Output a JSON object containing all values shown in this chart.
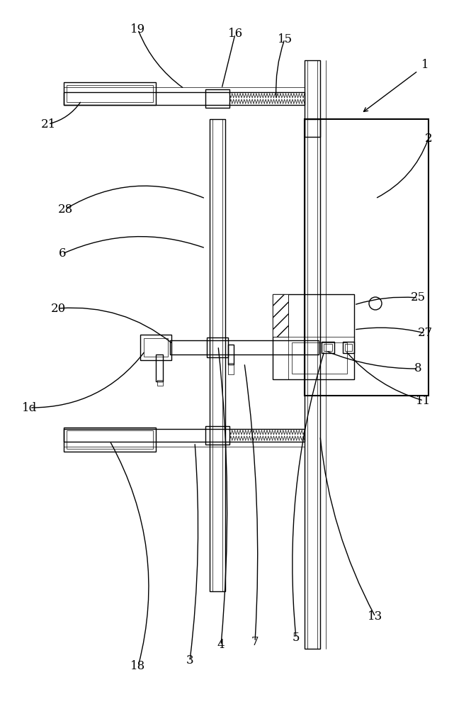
{
  "bg_color": "#ffffff",
  "lc": "#000000",
  "fig_width": 6.65,
  "fig_height": 10.0,
  "lw": 1.0,
  "lw2": 1.5,
  "lw_thin": 0.5,
  "label_fs": 12
}
